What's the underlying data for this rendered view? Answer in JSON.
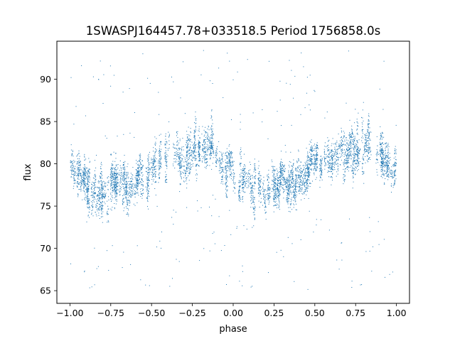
{
  "chart_data": {
    "type": "scatter",
    "title": "1SWASPJ164457.78+033518.5 Period 1756858.0s",
    "xlabel": "phase",
    "ylabel": "flux",
    "xlim": [
      -1.08,
      1.08
    ],
    "ylim": [
      63.5,
      94.5
    ],
    "x_ticks": [
      -1.0,
      -0.75,
      -0.5,
      -0.25,
      0.0,
      0.25,
      0.5,
      0.75,
      1.0
    ],
    "x_tick_labels": [
      "−1.00",
      "−0.75",
      "−0.50",
      "−0.25",
      "0.00",
      "0.25",
      "0.50",
      "0.75",
      "1.00"
    ],
    "y_ticks": [
      65,
      70,
      75,
      80,
      85,
      90
    ],
    "y_tick_labels": [
      "65",
      "70",
      "75",
      "80",
      "85",
      "90"
    ],
    "grid": false,
    "legend": "none",
    "marker_color": "#1f77b4",
    "series": [
      {
        "phase_profile": {
          "x": [
            -1.0,
            -0.95,
            -0.9,
            -0.85,
            -0.8,
            -0.75,
            -0.7,
            -0.65,
            -0.6,
            -0.55,
            -0.5,
            -0.45,
            -0.4,
            -0.35,
            -0.3,
            -0.25,
            -0.2,
            -0.15,
            -0.1,
            -0.05,
            0.0,
            0.05,
            0.1,
            0.15,
            0.2,
            0.25,
            0.3,
            0.35,
            0.4,
            0.45,
            0.5,
            0.55,
            0.6,
            0.65,
            0.7,
            0.75,
            0.8,
            0.85,
            0.9,
            0.95,
            1.0
          ],
          "y": [
            79.5,
            79.0,
            77.5,
            77.0,
            76.5,
            77.0,
            77.5,
            77.0,
            78.0,
            78.5,
            79.5,
            80.5,
            81.0,
            81.0,
            80.5,
            81.5,
            82.0,
            82.5,
            81.0,
            79.5,
            79.5,
            78.5,
            77.5,
            77.0,
            76.5,
            77.0,
            77.5,
            77.0,
            78.0,
            78.5,
            79.5,
            80.5,
            81.0,
            81.0,
            80.5,
            81.5,
            82.0,
            82.5,
            81.0,
            79.5,
            79.5
          ],
          "spread": 2.2,
          "outlier_range": [
            65,
            93.5
          ]
        }
      }
    ]
  }
}
